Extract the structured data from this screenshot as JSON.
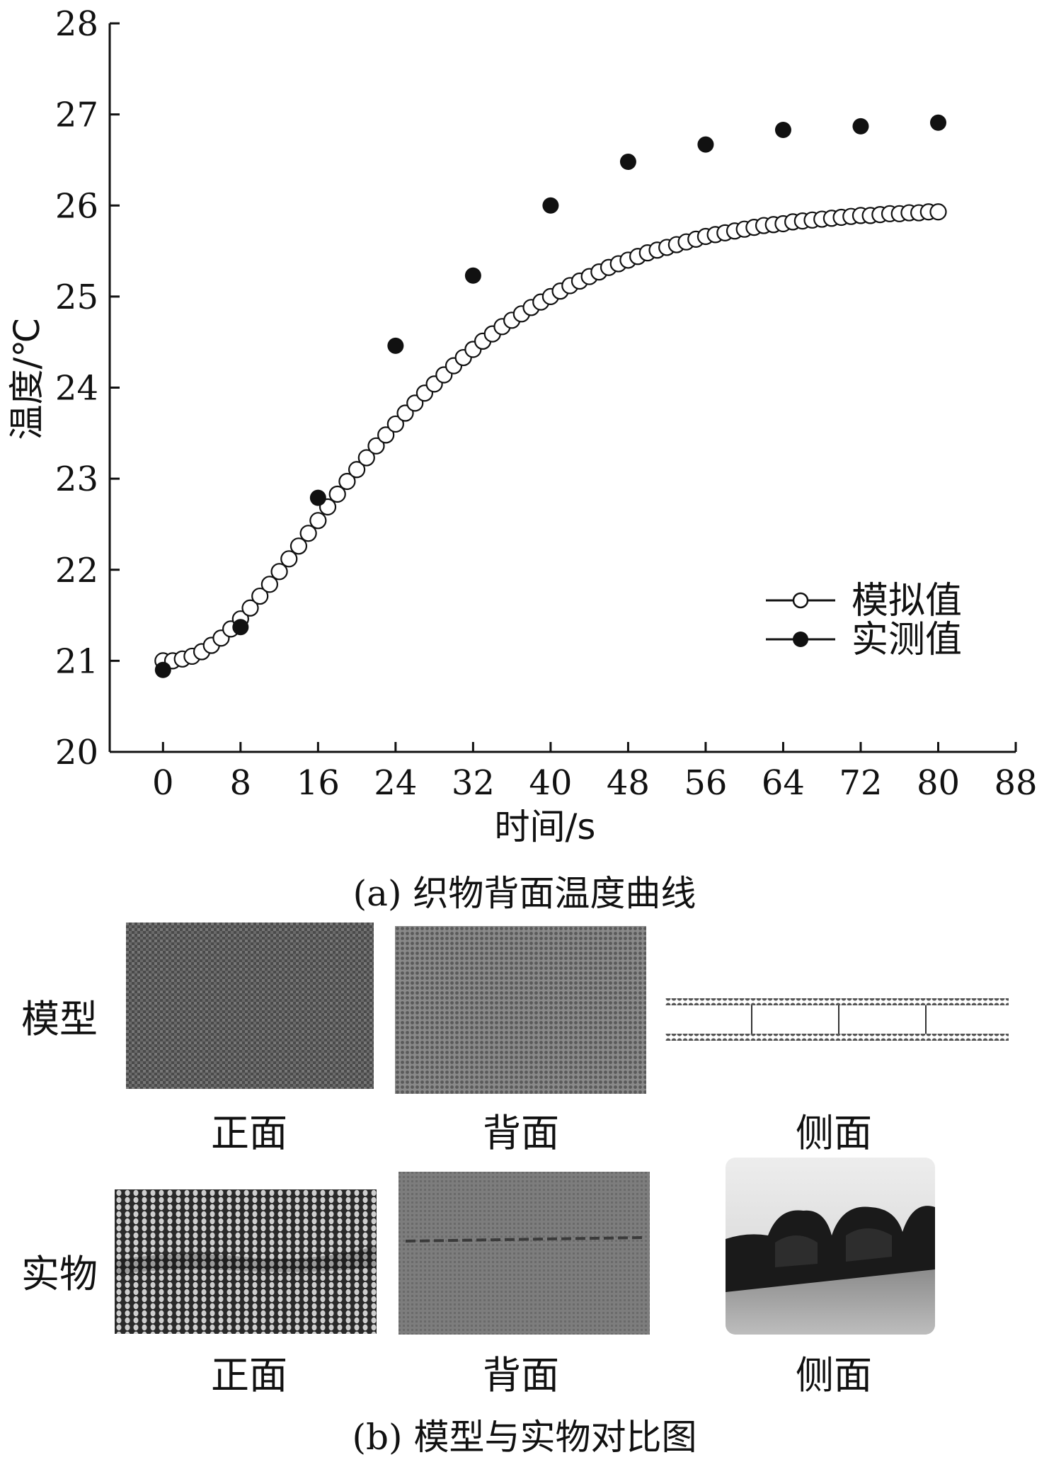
{
  "chart_data": {
    "type": "scatter",
    "xlabel": "时间/s",
    "ylabel": "温度/℃",
    "xlim": [
      -5.5,
      88
    ],
    "ylim": [
      20,
      28
    ],
    "xticks": [
      "0",
      "8",
      "16",
      "24",
      "32",
      "40",
      "48",
      "56",
      "64",
      "72",
      "80",
      "88"
    ],
    "yticks": [
      "20",
      "21",
      "22",
      "23",
      "24",
      "25",
      "26",
      "27",
      "28"
    ],
    "legend_position": "bottom-right",
    "series": [
      {
        "name": "模拟值",
        "marker": "open-circle",
        "x": [
          0,
          1,
          2,
          3,
          4,
          5,
          6,
          7,
          8,
          9,
          10,
          11,
          12,
          13,
          14,
          15,
          16,
          17,
          18,
          19,
          20,
          21,
          22,
          23,
          24,
          25,
          26,
          27,
          28,
          29,
          30,
          31,
          32,
          33,
          34,
          35,
          36,
          37,
          38,
          39,
          40,
          41,
          42,
          43,
          44,
          45,
          46,
          47,
          48,
          49,
          50,
          51,
          52,
          53,
          54,
          55,
          56,
          57,
          58,
          59,
          60,
          61,
          62,
          63,
          64,
          65,
          66,
          67,
          68,
          69,
          70,
          71,
          72,
          73,
          74,
          75,
          76,
          77,
          78,
          79,
          80
        ],
        "y": [
          21.0,
          21.0,
          21.02,
          21.05,
          21.1,
          21.17,
          21.25,
          21.35,
          21.46,
          21.58,
          21.71,
          21.84,
          21.98,
          22.12,
          22.26,
          22.4,
          22.54,
          22.69,
          22.83,
          22.97,
          23.1,
          23.23,
          23.36,
          23.48,
          23.6,
          23.72,
          23.83,
          23.94,
          24.04,
          24.14,
          24.24,
          24.33,
          24.42,
          24.51,
          24.59,
          24.67,
          24.74,
          24.81,
          24.88,
          24.94,
          25.0,
          25.06,
          25.12,
          25.17,
          25.22,
          25.27,
          25.32,
          25.36,
          25.4,
          25.44,
          25.48,
          25.51,
          25.54,
          25.57,
          25.6,
          25.63,
          25.66,
          25.68,
          25.7,
          25.72,
          25.74,
          25.76,
          25.78,
          25.79,
          25.8,
          25.82,
          25.83,
          25.84,
          25.85,
          25.86,
          25.87,
          25.88,
          25.89,
          25.89,
          25.9,
          25.91,
          25.91,
          25.92,
          25.92,
          25.93,
          25.93
        ]
      },
      {
        "name": "实测值",
        "marker": "filled-circle",
        "x": [
          0,
          8,
          16,
          24,
          32,
          40,
          48,
          56,
          64,
          72,
          80
        ],
        "y": [
          20.9,
          21.37,
          22.79,
          24.46,
          25.23,
          26.0,
          26.48,
          26.67,
          26.83,
          26.87,
          26.91
        ]
      }
    ]
  },
  "captions": {
    "a": "(a) 织物背面温度曲线",
    "b": "(b) 模型与实物对比图"
  },
  "comparison": {
    "row_labels": [
      "模型",
      "实物"
    ],
    "view_labels": [
      "正面",
      "背面",
      "侧面"
    ]
  }
}
